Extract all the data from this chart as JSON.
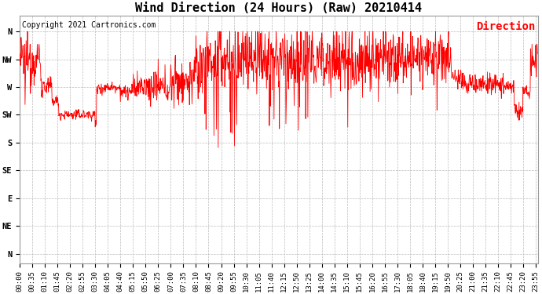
{
  "title": "Wind Direction (24 Hours) (Raw) 20210414",
  "copyright": "Copyright 2021 Cartronics.com",
  "legend_label": "Direction",
  "line_color": "#ff0000",
  "background_color": "#ffffff",
  "grid_color": "#bbbbbb",
  "ytick_labels": [
    "N",
    "NW",
    "W",
    "SW",
    "S",
    "SE",
    "E",
    "NE",
    "N"
  ],
  "ytick_values": [
    360,
    315,
    270,
    225,
    180,
    135,
    90,
    45,
    0
  ],
  "ylim": [
    -15,
    385
  ],
  "title_fontsize": 11,
  "copyright_fontsize": 7,
  "legend_fontsize": 10,
  "tick_fontsize": 6.5
}
